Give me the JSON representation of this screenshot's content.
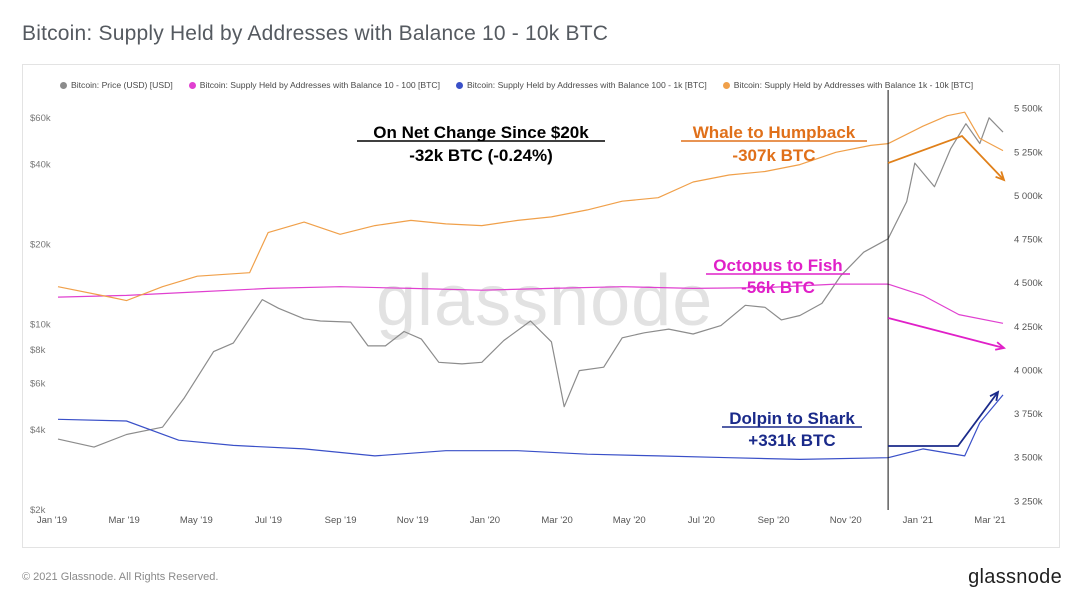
{
  "page": {
    "title": "Bitcoin: Supply Held by Addresses with Balance 10 - 10k BTC",
    "copyright": "© 2021 Glassnode. All Rights Reserved.",
    "brand": "glassnode",
    "watermark": "glassnode"
  },
  "legend": [
    {
      "label": "Bitcoin: Price (USD) [USD]",
      "color": "#8c8c8c"
    },
    {
      "label": "Bitcoin: Supply Held by Addresses with Balance 10 - 100 [BTC]",
      "color": "#e040d0"
    },
    {
      "label": "Bitcoin: Supply Held by Addresses with Balance 100 - 1k [BTC]",
      "color": "#3a50c8"
    },
    {
      "label": "Bitcoin: Supply Held by Addresses with Balance 1k - 10k [BTC]",
      "color": "#f0a04a"
    }
  ],
  "annotations": {
    "net_change_title": "On Net Change Since $20k",
    "net_change_value": "-32k BTC (-0.24%)",
    "whale_title": "Whale to Humpback",
    "whale_value": "-307k BTC",
    "whale_color": "#e0701a",
    "octopus_title": "Octopus to Fish",
    "octopus_value": "-56k BTC",
    "octopus_color": "#e020c8",
    "dolphin_title": "Dolpin to Shark",
    "dolphin_value": "+331k BTC",
    "dolphin_color": "#1a2a8a"
  },
  "chart_data": {
    "type": "line",
    "x_ticks": [
      "Jan '19",
      "Mar '19",
      "May '19",
      "Jul '19",
      "Sep '19",
      "Nov '19",
      "Jan '20",
      "Mar '20",
      "May '20",
      "Jul '20",
      "Sep '20",
      "Nov '20",
      "Jan '21",
      "Mar '21"
    ],
    "x_range": [
      "2019-01-01",
      "2021-03-31"
    ],
    "y_left": {
      "scale": "log",
      "range": [
        2000,
        70000
      ],
      "ticks": [
        "$2k",
        "$4k",
        "$6k",
        "$8k",
        "$10k",
        "$20k",
        "$40k",
        "$60k"
      ],
      "tick_values": [
        2000,
        4000,
        6000,
        8000,
        10000,
        20000,
        40000,
        60000
      ]
    },
    "y_right": {
      "scale": "linear",
      "range": [
        3200000,
        5550000
      ],
      "ticks": [
        "3 250k",
        "3 500k",
        "3 750k",
        "4 000k",
        "4 250k",
        "4 500k",
        "4 750k",
        "5 000k",
        "5 250k",
        "5 500k"
      ],
      "tick_values": [
        3250000,
        3500000,
        3750000,
        4000000,
        4250000,
        4500000,
        4750000,
        5000000,
        5250000,
        5500000
      ]
    },
    "vline_date": "2020-12-16",
    "series": [
      {
        "name": "Bitcoin: Price (USD) [USD]",
        "axis": "left",
        "color": "#8c8c8c",
        "x": [
          "2019-01-01",
          "2019-02-01",
          "2019-03-01",
          "2019-04-01",
          "2019-04-20",
          "2019-05-15",
          "2019-06-01",
          "2019-06-26",
          "2019-07-10",
          "2019-08-01",
          "2019-08-15",
          "2019-09-10",
          "2019-09-25",
          "2019-10-10",
          "2019-10-26",
          "2019-11-10",
          "2019-11-25",
          "2019-12-15",
          "2020-01-01",
          "2020-01-20",
          "2020-02-12",
          "2020-03-01",
          "2020-03-12",
          "2020-03-25",
          "2020-04-15",
          "2020-05-01",
          "2020-05-20",
          "2020-06-10",
          "2020-07-01",
          "2020-07-25",
          "2020-08-15",
          "2020-09-01",
          "2020-09-15",
          "2020-10-01",
          "2020-10-20",
          "2020-11-05",
          "2020-11-25",
          "2020-12-16",
          "2021-01-01",
          "2021-01-08",
          "2021-01-25",
          "2021-02-08",
          "2021-02-21",
          "2021-03-05",
          "2021-03-13",
          "2021-03-25"
        ],
        "y": [
          3700,
          3450,
          3850,
          4100,
          5300,
          7900,
          8500,
          12400,
          11500,
          10500,
          10300,
          10200,
          8300,
          8300,
          9400,
          8800,
          7200,
          7100,
          7200,
          8700,
          10300,
          8600,
          4900,
          6700,
          6900,
          8900,
          9300,
          9600,
          9200,
          9900,
          11800,
          11600,
          10400,
          10800,
          12000,
          15200,
          18700,
          21000,
          29000,
          40500,
          33000,
          46000,
          57000,
          48000,
          60000,
          53000
        ]
      },
      {
        "name": "Bitcoin: Supply Held by Addresses with Balance 10 - 100 [BTC]",
        "axis": "right",
        "color": "#e040d0",
        "x": [
          "2019-01-01",
          "2019-03-01",
          "2019-05-01",
          "2019-07-01",
          "2019-09-01",
          "2019-11-01",
          "2020-01-01",
          "2020-03-01",
          "2020-05-01",
          "2020-07-01",
          "2020-09-01",
          "2020-11-01",
          "2020-12-16",
          "2021-01-15",
          "2021-02-15",
          "2021-03-25"
        ],
        "y": [
          4420000,
          4430000,
          4450000,
          4470000,
          4480000,
          4470000,
          4460000,
          4470000,
          4480000,
          4470000,
          4475000,
          4495000,
          4495000,
          4430000,
          4320000,
          4270000
        ]
      },
      {
        "name": "Bitcoin: Supply Held by Addresses with Balance 100 - 1k [BTC]",
        "axis": "right",
        "color": "#3a50c8",
        "x": [
          "2019-01-01",
          "2019-03-01",
          "2019-04-15",
          "2019-06-01",
          "2019-08-01",
          "2019-10-01",
          "2019-12-01",
          "2020-02-01",
          "2020-04-01",
          "2020-06-01",
          "2020-08-01",
          "2020-10-01",
          "2020-12-16",
          "2021-01-15",
          "2021-02-20",
          "2021-03-05",
          "2021-03-25"
        ],
        "y": [
          3720000,
          3710000,
          3600000,
          3570000,
          3550000,
          3510000,
          3540000,
          3540000,
          3520000,
          3510000,
          3500000,
          3490000,
          3500000,
          3550000,
          3510000,
          3700000,
          3860000
        ]
      },
      {
        "name": "Bitcoin: Supply Held by Addresses with Balance 1k - 10k [BTC]",
        "axis": "right",
        "color": "#f0a04a",
        "x": [
          "2019-01-01",
          "2019-02-15",
          "2019-03-01",
          "2019-04-01",
          "2019-05-01",
          "2019-06-15",
          "2019-07-01",
          "2019-08-01",
          "2019-09-01",
          "2019-10-01",
          "2019-11-01",
          "2019-12-01",
          "2020-01-01",
          "2020-02-01",
          "2020-03-01",
          "2020-04-01",
          "2020-05-01",
          "2020-06-01",
          "2020-07-01",
          "2020-08-01",
          "2020-09-01",
          "2020-10-01",
          "2020-11-01",
          "2020-12-01",
          "2020-12-16",
          "2021-01-15",
          "2021-02-05",
          "2021-02-20",
          "2021-03-05",
          "2021-03-25"
        ],
        "y": [
          4480000,
          4420000,
          4400000,
          4480000,
          4540000,
          4560000,
          4790000,
          4850000,
          4780000,
          4830000,
          4860000,
          4840000,
          4830000,
          4860000,
          4880000,
          4920000,
          4970000,
          4990000,
          5080000,
          5120000,
          5140000,
          5180000,
          5250000,
          5290000,
          5300000,
          5400000,
          5460000,
          5480000,
          5330000,
          5260000
        ]
      }
    ]
  }
}
